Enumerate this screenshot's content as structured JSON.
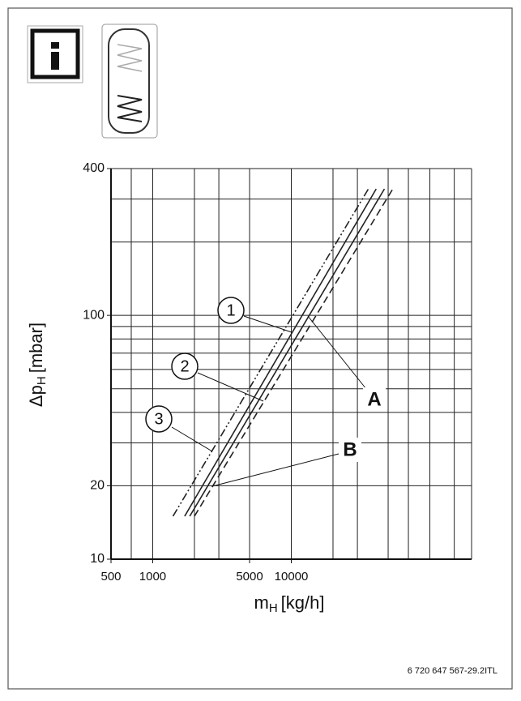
{
  "chart_data": {
    "type": "line",
    "ylabel": {
      "main": "Δp",
      "sub": "H",
      "unit": "[mbar]"
    },
    "xlabel": {
      "main": "m",
      "sub": "H",
      "unit": "[kg/h]"
    },
    "x_log": true,
    "y_log": true,
    "xlim": [
      500,
      200000
    ],
    "ylim": [
      10,
      400
    ],
    "xticks": [
      500,
      1000,
      5000,
      10000
    ],
    "yticks": [
      10,
      20,
      100,
      400
    ],
    "x_gridlines": [
      500,
      700,
      1000,
      2000,
      3000,
      5000,
      10000,
      20000,
      30000,
      50000,
      70000,
      100000,
      150000,
      200000
    ],
    "y_gridlines": [
      10,
      20,
      30,
      40,
      50,
      60,
      70,
      80,
      90,
      100,
      200,
      300,
      400
    ],
    "series": [
      {
        "color": "#222222",
        "dash": "10 3 2 3 2 3",
        "x": [
          1400,
          36000
        ],
        "values": [
          15,
          330
        ]
      },
      {
        "color": "#222222",
        "dash": "none",
        "x": [
          1700,
          41000
        ],
        "values": [
          15,
          330
        ]
      },
      {
        "color": "#222222",
        "dash": "none",
        "x": [
          1850,
          47000
        ],
        "values": [
          15,
          330
        ]
      },
      {
        "color": "#222222",
        "dash": "9 5",
        "x": [
          2000,
          54000
        ],
        "values": [
          15,
          330
        ]
      }
    ],
    "annotations": [
      "1",
      "2",
      "3",
      "A",
      "B"
    ],
    "footer": "6 720 647 567-29.2ITL"
  }
}
